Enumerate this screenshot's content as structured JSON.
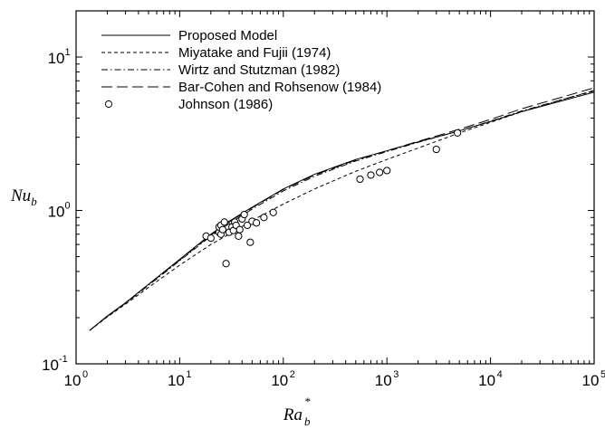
{
  "chart_data": {
    "type": "line",
    "title": "",
    "xlabel": {
      "base": "Ra",
      "sup": "*",
      "sub": "b"
    },
    "ylabel": {
      "base": "Nu",
      "sub": "b"
    },
    "xscale": "log",
    "yscale": "log",
    "xlim": [
      1,
      100000
    ],
    "ylim": [
      0.1,
      20
    ],
    "x_ticks": [
      {
        "value": 1,
        "base": "10",
        "exp": "0"
      },
      {
        "value": 10,
        "base": "10",
        "exp": "1"
      },
      {
        "value": 100,
        "base": "10",
        "exp": "2"
      },
      {
        "value": 1000,
        "base": "10",
        "exp": "3"
      },
      {
        "value": 10000,
        "base": "10",
        "exp": "4"
      },
      {
        "value": 100000,
        "base": "10",
        "exp": "5"
      }
    ],
    "y_ticks": [
      {
        "value": 0.1,
        "base": "10",
        "exp": "-1"
      },
      {
        "value": 1,
        "base": "10",
        "exp": "0"
      },
      {
        "value": 10,
        "base": "10",
        "exp": "1"
      }
    ],
    "grid": false,
    "legend_position": "top-left",
    "series": [
      {
        "name": "Proposed Model",
        "style": "solid",
        "x": [
          1.35,
          2,
          3,
          5,
          10,
          20,
          30,
          50,
          100,
          200,
          500,
          1000,
          2000,
          5000,
          10000,
          20000,
          50000,
          100000
        ],
        "y": [
          0.165,
          0.205,
          0.25,
          0.33,
          0.48,
          0.7,
          0.85,
          1.05,
          1.38,
          1.72,
          2.15,
          2.45,
          2.8,
          3.3,
          3.8,
          4.4,
          5.2,
          5.9
        ]
      },
      {
        "name": "Miyatake and Fujii (1974)",
        "style": "short-dash",
        "x": [
          1.35,
          2,
          3,
          5,
          10,
          20,
          30,
          50,
          100,
          200,
          500,
          1000,
          2000,
          5000,
          10000,
          20000,
          50000,
          100000
        ],
        "y": [
          0.165,
          0.202,
          0.245,
          0.315,
          0.44,
          0.6,
          0.7,
          0.86,
          1.1,
          1.38,
          1.8,
          2.15,
          2.55,
          3.2,
          3.75,
          4.4,
          5.3,
          6.0
        ]
      },
      {
        "name": "Wirtz and Stutzman (1982)",
        "style": "dash-dot",
        "x": [
          1.35,
          2,
          3,
          5,
          10,
          20,
          30,
          50,
          100,
          200,
          500,
          1000,
          2000,
          5000,
          10000,
          20000,
          50000,
          100000
        ],
        "y": [
          0.165,
          0.204,
          0.248,
          0.325,
          0.47,
          0.68,
          0.82,
          1.02,
          1.34,
          1.67,
          2.1,
          2.42,
          2.78,
          3.3,
          3.82,
          4.45,
          5.3,
          6.05
        ]
      },
      {
        "name": "Bar-Cohen and Rohsenow (1984)",
        "style": "long-dash",
        "x": [
          1.35,
          2,
          3,
          5,
          10,
          20,
          30,
          50,
          100,
          200,
          500,
          1000,
          2000,
          5000,
          10000,
          20000,
          50000,
          100000
        ],
        "y": [
          0.165,
          0.204,
          0.25,
          0.328,
          0.475,
          0.69,
          0.84,
          1.04,
          1.37,
          1.7,
          2.13,
          2.45,
          2.82,
          3.38,
          3.92,
          4.6,
          5.5,
          6.3
        ]
      },
      {
        "name": "Johnson (1986)",
        "style": "open-circle",
        "x": [
          18,
          20,
          24,
          24,
          25,
          25,
          26,
          27,
          28,
          30,
          32,
          33,
          34,
          35,
          37,
          38,
          40,
          42,
          45,
          48,
          50,
          55,
          65,
          80,
          550,
          700,
          850,
          1000,
          3000,
          4800
        ],
        "y": [
          0.68,
          0.66,
          0.72,
          0.78,
          0.8,
          0.7,
          0.75,
          0.84,
          0.45,
          0.72,
          0.78,
          0.74,
          0.84,
          0.8,
          0.68,
          0.75,
          0.88,
          0.94,
          0.8,
          0.62,
          0.85,
          0.83,
          0.9,
          0.97,
          1.6,
          1.7,
          1.77,
          1.82,
          2.5,
          3.2
        ]
      }
    ]
  }
}
